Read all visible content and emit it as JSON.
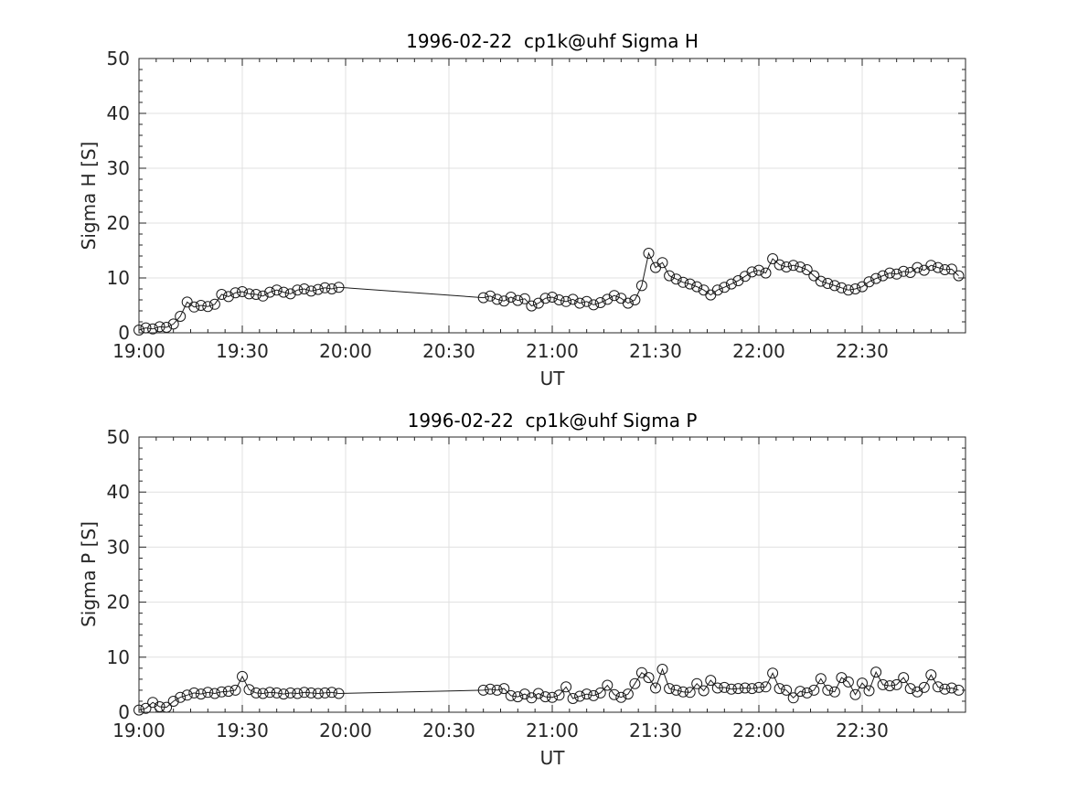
{
  "figure": {
    "background": "#ffffff",
    "axis_color": "#262626",
    "grid_color": "#e0e0e0",
    "line_color": "#1a1a1a",
    "marker": "open-circle"
  },
  "chart_data": [
    {
      "type": "line",
      "title": "1996-02-22  cp1k@uhf Sigma H",
      "xlabel": "UT",
      "ylabel": "Sigma H [S]",
      "ylim": [
        0,
        50
      ],
      "xlim": [
        "19:00",
        "23:00"
      ],
      "xticks": [
        "19:00",
        "19:30",
        "20:00",
        "20:30",
        "21:00",
        "21:30",
        "22:00",
        "22:30"
      ],
      "yticks": [
        0,
        10,
        20,
        30,
        40,
        50
      ],
      "x_minor_step_min": 5,
      "y_minor_step": 2,
      "grid": true,
      "legend": "none",
      "series": [
        {
          "name": "Sigma H",
          "x": [
            "19:00",
            "19:02",
            "19:04",
            "19:06",
            "19:08",
            "19:10",
            "19:12",
            "19:14",
            "19:16",
            "19:18",
            "19:20",
            "19:22",
            "19:24",
            "19:26",
            "19:28",
            "19:30",
            "19:32",
            "19:34",
            "19:36",
            "19:38",
            "19:40",
            "19:42",
            "19:44",
            "19:46",
            "19:48",
            "19:50",
            "19:52",
            "19:54",
            "19:56",
            "19:58",
            "20:40",
            "20:42",
            "20:44",
            "20:46",
            "20:48",
            "20:50",
            "20:52",
            "20:54",
            "20:56",
            "20:58",
            "21:00",
            "21:02",
            "21:04",
            "21:06",
            "21:08",
            "21:10",
            "21:12",
            "21:14",
            "21:16",
            "21:18",
            "21:20",
            "21:22",
            "21:24",
            "21:26",
            "21:28",
            "21:30",
            "21:32",
            "21:34",
            "21:36",
            "21:38",
            "21:40",
            "21:42",
            "21:44",
            "21:46",
            "21:48",
            "21:50",
            "21:52",
            "21:54",
            "21:56",
            "21:58",
            "22:00",
            "22:02",
            "22:04",
            "22:06",
            "22:08",
            "22:10",
            "22:12",
            "22:14",
            "22:16",
            "22:18",
            "22:20",
            "22:22",
            "22:24",
            "22:26",
            "22:28",
            "22:30",
            "22:32",
            "22:34",
            "22:36",
            "22:38",
            "22:40",
            "22:42",
            "22:44",
            "22:46",
            "22:48",
            "22:50",
            "22:52",
            "22:54",
            "22:56",
            "22:58"
          ],
          "y": [
            0.5,
            0.9,
            0.7,
            1.1,
            1.0,
            1.6,
            3.0,
            5.6,
            4.7,
            5.0,
            4.8,
            5.2,
            7.0,
            6.6,
            7.3,
            7.5,
            7.1,
            7.0,
            6.7,
            7.4,
            7.8,
            7.4,
            7.1,
            7.8,
            8.0,
            7.6,
            7.9,
            8.2,
            8.0,
            8.3,
            6.4,
            6.7,
            6.1,
            5.8,
            6.5,
            5.9,
            6.2,
            4.9,
            5.4,
            6.3,
            6.5,
            6.0,
            5.7,
            6.1,
            5.4,
            5.7,
            5.1,
            5.5,
            6.1,
            6.8,
            6.3,
            5.4,
            6.0,
            8.6,
            14.5,
            11.9,
            12.8,
            10.4,
            9.8,
            9.2,
            8.9,
            8.4,
            7.8,
            6.9,
            7.8,
            8.3,
            8.9,
            9.5,
            10.3,
            11.1,
            11.4,
            10.9,
            13.5,
            12.4,
            12.0,
            12.3,
            12.0,
            11.5,
            10.4,
            9.4,
            9.0,
            8.6,
            8.2,
            7.8,
            8.0,
            8.4,
            9.3,
            9.9,
            10.4,
            10.9,
            10.7,
            11.2,
            11.0,
            11.9,
            11.4,
            12.3,
            11.9,
            11.5,
            11.6,
            10.4
          ]
        }
      ]
    },
    {
      "type": "line",
      "title": "1996-02-22  cp1k@uhf Sigma P",
      "xlabel": "UT",
      "ylabel": "Sigma P [S]",
      "ylim": [
        0,
        50
      ],
      "xlim": [
        "19:00",
        "23:00"
      ],
      "xticks": [
        "19:00",
        "19:30",
        "20:00",
        "20:30",
        "21:00",
        "21:30",
        "22:00",
        "22:30"
      ],
      "yticks": [
        0,
        10,
        20,
        30,
        40,
        50
      ],
      "x_minor_step_min": 5,
      "y_minor_step": 2,
      "grid": true,
      "legend": "none",
      "series": [
        {
          "name": "Sigma P",
          "x": [
            "19:00",
            "19:02",
            "19:04",
            "19:06",
            "19:08",
            "19:10",
            "19:12",
            "19:14",
            "19:16",
            "19:18",
            "19:20",
            "19:22",
            "19:24",
            "19:26",
            "19:28",
            "19:30",
            "19:32",
            "19:34",
            "19:36",
            "19:38",
            "19:40",
            "19:42",
            "19:44",
            "19:46",
            "19:48",
            "19:50",
            "19:52",
            "19:54",
            "19:56",
            "19:58",
            "20:40",
            "20:42",
            "20:44",
            "20:46",
            "20:48",
            "20:50",
            "20:52",
            "20:54",
            "20:56",
            "20:58",
            "21:00",
            "21:02",
            "21:04",
            "21:06",
            "21:08",
            "21:10",
            "21:12",
            "21:14",
            "21:16",
            "21:18",
            "21:20",
            "21:22",
            "21:24",
            "21:26",
            "21:28",
            "21:30",
            "21:32",
            "21:34",
            "21:36",
            "21:38",
            "21:40",
            "21:42",
            "21:44",
            "21:46",
            "21:48",
            "21:50",
            "21:52",
            "21:54",
            "21:56",
            "21:58",
            "22:00",
            "22:02",
            "22:04",
            "22:06",
            "22:08",
            "22:10",
            "22:12",
            "22:14",
            "22:16",
            "22:18",
            "22:20",
            "22:22",
            "22:24",
            "22:26",
            "22:28",
            "22:30",
            "22:32",
            "22:34",
            "22:36",
            "22:38",
            "22:40",
            "22:42",
            "22:44",
            "22:46",
            "22:48",
            "22:50",
            "22:52",
            "22:54",
            "22:56",
            "22:58"
          ],
          "y": [
            0.4,
            0.7,
            1.8,
            1.0,
            0.9,
            2.0,
            2.7,
            3.1,
            3.5,
            3.3,
            3.6,
            3.4,
            3.7,
            3.8,
            4.0,
            6.5,
            4.1,
            3.5,
            3.4,
            3.6,
            3.5,
            3.3,
            3.5,
            3.4,
            3.6,
            3.5,
            3.4,
            3.5,
            3.6,
            3.4,
            4.0,
            4.2,
            4.0,
            4.3,
            3.0,
            2.8,
            3.3,
            2.6,
            3.4,
            2.8,
            2.7,
            3.1,
            4.6,
            2.5,
            2.9,
            3.3,
            3.0,
            3.5,
            4.9,
            3.2,
            2.7,
            3.3,
            5.2,
            7.2,
            6.3,
            4.4,
            7.8,
            4.3,
            4.0,
            3.7,
            3.6,
            5.2,
            3.9,
            5.8,
            4.4,
            4.5,
            4.2,
            4.3,
            4.4,
            4.3,
            4.5,
            4.6,
            7.1,
            4.3,
            4.0,
            2.6,
            3.8,
            3.5,
            4.0,
            6.1,
            4.0,
            3.7,
            6.3,
            5.5,
            3.2,
            5.3,
            3.9,
            7.3,
            5.0,
            4.8,
            5.0,
            6.3,
            4.3,
            3.7,
            4.5,
            6.8,
            4.6,
            4.2,
            4.4,
            4.0
          ]
        }
      ]
    }
  ]
}
